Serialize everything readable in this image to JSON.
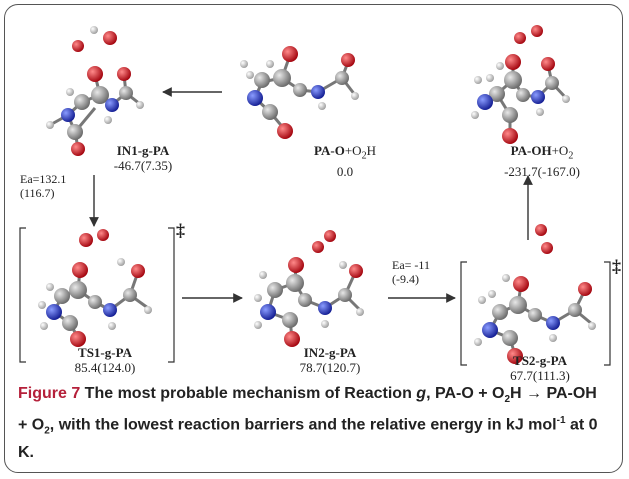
{
  "species": {
    "in1": {
      "name": "IN1-g-PA",
      "energy": "-46.7(7.35)"
    },
    "reactant": {
      "name_main": "PA-O",
      "name_rest": "+O",
      "name_sub": "2",
      "name_tail": "H",
      "energy": "0.0"
    },
    "product": {
      "name_main": "PA-OH",
      "name_rest": "+O",
      "name_sub": "2",
      "energy": "-231.7(-167.0)"
    },
    "ts1": {
      "name": "TS1-g-PA",
      "energy": "85.4(124.0)"
    },
    "in2": {
      "name": "IN2-g-PA",
      "energy": "78.7(120.7)"
    },
    "ts2": {
      "name": "TS2-g-PA",
      "energy": "67.7(111.3)"
    }
  },
  "barriers": {
    "ea1": {
      "line1": "Ea=132.1",
      "line2": "(116.7)"
    },
    "ea2": {
      "line1": "Ea= -11",
      "line2": "(-9.4)"
    }
  },
  "ts_marker": "‡",
  "caption": {
    "figure_label": "Figure 7",
    "text_a": " The most probable mechanism of Reaction ",
    "text_g": "g",
    "text_b": ", PA-O + O",
    "sub_2a": "2",
    "text_c": "H → PA-OH + O",
    "sub_2b": "2",
    "text_d": ", with the lowest reaction barriers and the relative energy in kJ mol",
    "sup": "-1",
    "text_e": " at 0 K."
  },
  "colors": {
    "carbon": "#8a8a8a",
    "oxygen": "#d0101a",
    "nitrogen": "#2233cc",
    "hydrogen": "#e6e6e6"
  }
}
